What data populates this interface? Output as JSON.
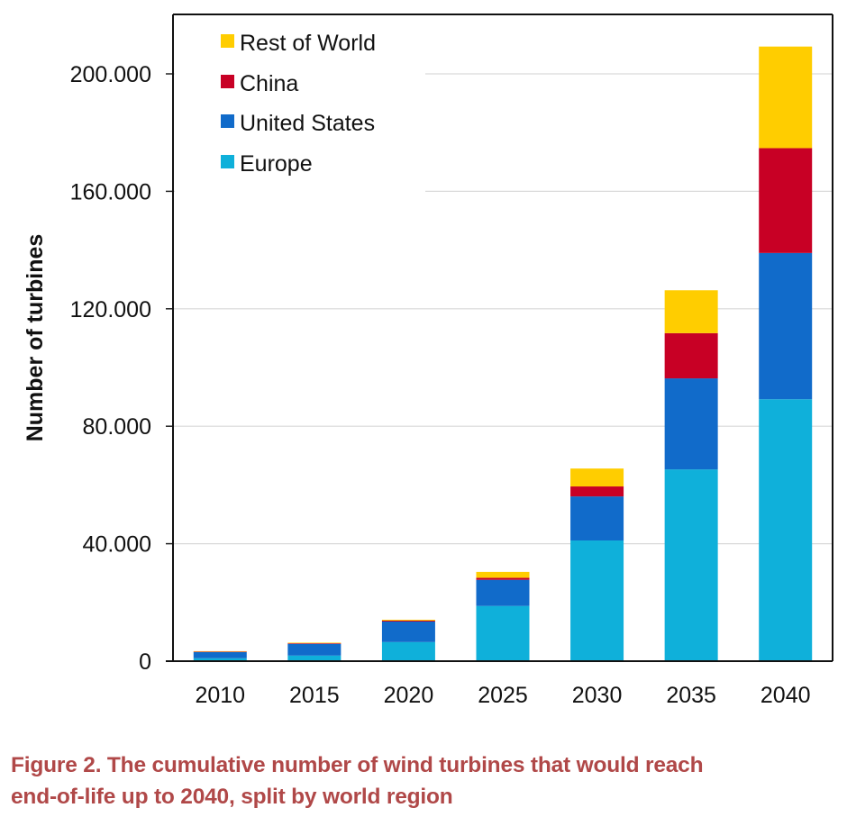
{
  "chart_data": {
    "type": "bar",
    "stacked": true,
    "title": "",
    "xlabel": "",
    "ylabel": "Number of turbines",
    "ylim": [
      0,
      220000
    ],
    "yticks": [
      0,
      40000,
      80000,
      120000,
      160000,
      200000
    ],
    "ytick_labels": [
      "0",
      "40.000",
      "80.000",
      "120.000",
      "160.000",
      "200.000"
    ],
    "grid": true,
    "legend_position": "top-left",
    "categories": [
      "2010",
      "2015",
      "2020",
      "2025",
      "2030",
      "2035",
      "2040"
    ],
    "series": [
      {
        "name": "Europe",
        "color": "#0fb0da",
        "values": [
          1000,
          1900,
          6500,
          18800,
          41100,
          65300,
          89200
        ]
      },
      {
        "name": "United States",
        "color": "#116bca",
        "values": [
          2100,
          4000,
          7000,
          8900,
          15000,
          31000,
          49800
        ]
      },
      {
        "name": "China",
        "color": "#c80025",
        "values": [
          150,
          200,
          300,
          700,
          3400,
          15400,
          35700
        ]
      },
      {
        "name": "Rest of World",
        "color": "#ffcd00",
        "values": [
          150,
          200,
          300,
          2000,
          6100,
          14600,
          34600
        ]
      }
    ],
    "legend_order": [
      "Rest of World",
      "China",
      "United States",
      "Europe"
    ]
  },
  "caption": {
    "line1": "Figure 2.  The cumulative number of wind turbines that would reach",
    "line2": "end-of-life up to 2040, split by world region"
  }
}
